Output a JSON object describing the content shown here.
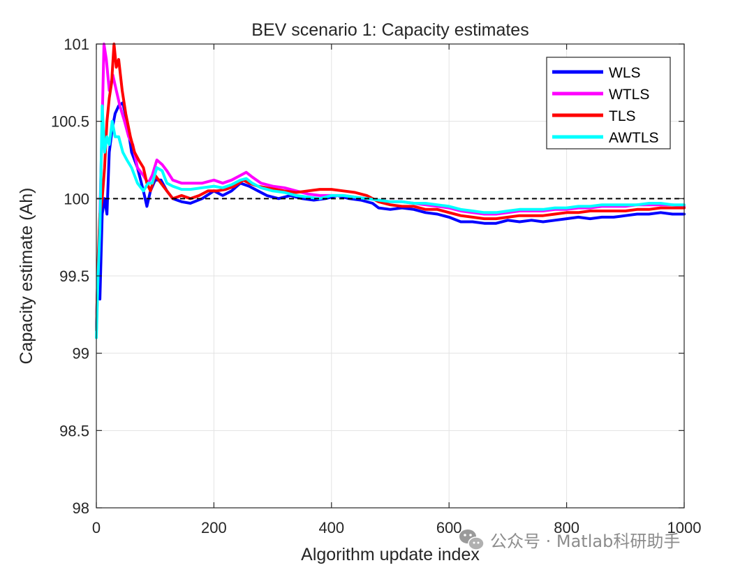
{
  "chart_data": {
    "type": "line",
    "title": "BEV scenario 1: Capacity estimates",
    "xlabel": "Algorithm update index",
    "ylabel": "Capacity estimate (Ah)",
    "xlim": [
      0,
      1000
    ],
    "ylim": [
      98,
      101
    ],
    "xticks": [
      0,
      200,
      400,
      600,
      800,
      1000
    ],
    "yticks": [
      98,
      98.5,
      99,
      99.5,
      100,
      100.5,
      101
    ],
    "grid": true,
    "legend_position": "top-right",
    "reference_line": {
      "y": 100,
      "style": "dashed",
      "color": "#000000"
    },
    "series": [
      {
        "name": "WLS",
        "color": "#0000ff",
        "points": [
          [
            0,
            99.15
          ],
          [
            3,
            99.6
          ],
          [
            6,
            99.35
          ],
          [
            10,
            99.9
          ],
          [
            14,
            100.0
          ],
          [
            18,
            99.9
          ],
          [
            22,
            100.3
          ],
          [
            27,
            100.45
          ],
          [
            32,
            100.55
          ],
          [
            38,
            100.6
          ],
          [
            45,
            100.62
          ],
          [
            52,
            100.5
          ],
          [
            60,
            100.3
          ],
          [
            70,
            100.2
          ],
          [
            80,
            100.05
          ],
          [
            86,
            99.95
          ],
          [
            92,
            100.05
          ],
          [
            100,
            100.12
          ],
          [
            110,
            100.12
          ],
          [
            120,
            100.05
          ],
          [
            130,
            100.0
          ],
          [
            145,
            99.98
          ],
          [
            160,
            99.97
          ],
          [
            180,
            100.0
          ],
          [
            200,
            100.05
          ],
          [
            215,
            100.02
          ],
          [
            230,
            100.05
          ],
          [
            245,
            100.1
          ],
          [
            260,
            100.08
          ],
          [
            275,
            100.05
          ],
          [
            290,
            100.02
          ],
          [
            310,
            100.0
          ],
          [
            330,
            100.02
          ],
          [
            350,
            100.0
          ],
          [
            370,
            99.99
          ],
          [
            390,
            100.0
          ],
          [
            410,
            100.02
          ],
          [
            430,
            100.0
          ],
          [
            450,
            99.99
          ],
          [
            470,
            99.97
          ],
          [
            480,
            99.94
          ],
          [
            500,
            99.93
          ],
          [
            520,
            99.94
          ],
          [
            540,
            99.93
          ],
          [
            560,
            99.91
          ],
          [
            580,
            99.9
          ],
          [
            600,
            99.88
          ],
          [
            620,
            99.85
          ],
          [
            640,
            99.85
          ],
          [
            660,
            99.84
          ],
          [
            680,
            99.84
          ],
          [
            700,
            99.86
          ],
          [
            720,
            99.85
          ],
          [
            740,
            99.86
          ],
          [
            760,
            99.85
          ],
          [
            780,
            99.86
          ],
          [
            800,
            99.87
          ],
          [
            820,
            99.88
          ],
          [
            840,
            99.87
          ],
          [
            860,
            99.88
          ],
          [
            880,
            99.88
          ],
          [
            900,
            99.89
          ],
          [
            920,
            99.9
          ],
          [
            940,
            99.9
          ],
          [
            960,
            99.91
          ],
          [
            980,
            99.9
          ],
          [
            1000,
            99.9
          ]
        ]
      },
      {
        "name": "WTLS",
        "color": "#ff00ff",
        "points": [
          [
            0,
            99.15
          ],
          [
            3,
            99.5
          ],
          [
            6,
            99.9
          ],
          [
            10,
            100.5
          ],
          [
            13,
            101.0
          ],
          [
            17,
            100.9
          ],
          [
            22,
            100.7
          ],
          [
            28,
            100.8
          ],
          [
            34,
            100.7
          ],
          [
            40,
            100.6
          ],
          [
            48,
            100.5
          ],
          [
            55,
            100.4
          ],
          [
            62,
            100.35
          ],
          [
            70,
            100.2
          ],
          [
            80,
            100.15
          ],
          [
            88,
            100.1
          ],
          [
            95,
            100.15
          ],
          [
            103,
            100.25
          ],
          [
            112,
            100.22
          ],
          [
            120,
            100.18
          ],
          [
            130,
            100.12
          ],
          [
            145,
            100.1
          ],
          [
            160,
            100.1
          ],
          [
            180,
            100.1
          ],
          [
            200,
            100.12
          ],
          [
            215,
            100.1
          ],
          [
            230,
            100.12
          ],
          [
            245,
            100.15
          ],
          [
            255,
            100.17
          ],
          [
            265,
            100.14
          ],
          [
            280,
            100.1
          ],
          [
            300,
            100.08
          ],
          [
            320,
            100.07
          ],
          [
            340,
            100.05
          ],
          [
            360,
            100.03
          ],
          [
            380,
            100.02
          ],
          [
            400,
            100.02
          ],
          [
            420,
            100.02
          ],
          [
            440,
            100.01
          ],
          [
            460,
            100.0
          ],
          [
            480,
            99.99
          ],
          [
            500,
            99.98
          ],
          [
            520,
            99.98
          ],
          [
            540,
            99.97
          ],
          [
            560,
            99.96
          ],
          [
            580,
            99.95
          ],
          [
            600,
            99.94
          ],
          [
            620,
            99.92
          ],
          [
            640,
            99.91
          ],
          [
            660,
            99.9
          ],
          [
            680,
            99.9
          ],
          [
            700,
            99.91
          ],
          [
            720,
            99.92
          ],
          [
            740,
            99.92
          ],
          [
            760,
            99.92
          ],
          [
            780,
            99.93
          ],
          [
            800,
            99.93
          ],
          [
            820,
            99.94
          ],
          [
            840,
            99.94
          ],
          [
            860,
            99.95
          ],
          [
            880,
            99.95
          ],
          [
            900,
            99.95
          ],
          [
            920,
            99.96
          ],
          [
            940,
            99.96
          ],
          [
            960,
            99.96
          ],
          [
            980,
            99.96
          ],
          [
            1000,
            99.95
          ]
        ]
      },
      {
        "name": "TLS",
        "color": "#ff0000",
        "points": [
          [
            0,
            99.15
          ],
          [
            3,
            99.6
          ],
          [
            6,
            99.9
          ],
          [
            10,
            100.0
          ],
          [
            14,
            100.2
          ],
          [
            18,
            100.5
          ],
          [
            22,
            100.65
          ],
          [
            26,
            100.75
          ],
          [
            30,
            101.0
          ],
          [
            34,
            100.85
          ],
          [
            38,
            100.9
          ],
          [
            44,
            100.7
          ],
          [
            50,
            100.55
          ],
          [
            58,
            100.4
          ],
          [
            65,
            100.3
          ],
          [
            72,
            100.25
          ],
          [
            80,
            100.2
          ],
          [
            86,
            100.1
          ],
          [
            92,
            100.05
          ],
          [
            100,
            100.15
          ],
          [
            110,
            100.1
          ],
          [
            120,
            100.05
          ],
          [
            130,
            100.0
          ],
          [
            145,
            100.02
          ],
          [
            160,
            100.0
          ],
          [
            175,
            100.02
          ],
          [
            190,
            100.05
          ],
          [
            205,
            100.05
          ],
          [
            220,
            100.06
          ],
          [
            235,
            100.08
          ],
          [
            250,
            100.12
          ],
          [
            260,
            100.1
          ],
          [
            275,
            100.08
          ],
          [
            290,
            100.07
          ],
          [
            305,
            100.06
          ],
          [
            320,
            100.05
          ],
          [
            340,
            100.04
          ],
          [
            360,
            100.05
          ],
          [
            380,
            100.06
          ],
          [
            400,
            100.06
          ],
          [
            420,
            100.05
          ],
          [
            440,
            100.04
          ],
          [
            460,
            100.02
          ],
          [
            480,
            99.98
          ],
          [
            500,
            99.96
          ],
          [
            520,
            99.95
          ],
          [
            540,
            99.95
          ],
          [
            560,
            99.93
          ],
          [
            580,
            99.93
          ],
          [
            600,
            99.91
          ],
          [
            620,
            99.89
          ],
          [
            640,
            99.88
          ],
          [
            660,
            99.87
          ],
          [
            680,
            99.87
          ],
          [
            700,
            99.88
          ],
          [
            720,
            99.89
          ],
          [
            740,
            99.89
          ],
          [
            760,
            99.89
          ],
          [
            780,
            99.9
          ],
          [
            800,
            99.91
          ],
          [
            820,
            99.91
          ],
          [
            840,
            99.92
          ],
          [
            860,
            99.92
          ],
          [
            880,
            99.92
          ],
          [
            900,
            99.92
          ],
          [
            920,
            99.93
          ],
          [
            940,
            99.93
          ],
          [
            960,
            99.94
          ],
          [
            980,
            99.94
          ],
          [
            1000,
            99.94
          ]
        ]
      },
      {
        "name": "AWTLS",
        "color": "#00ffff",
        "points": [
          [
            0,
            99.1
          ],
          [
            3,
            99.5
          ],
          [
            6,
            99.8
          ],
          [
            10,
            100.6
          ],
          [
            14,
            100.3
          ],
          [
            18,
            100.4
          ],
          [
            22,
            100.35
          ],
          [
            27,
            100.5
          ],
          [
            32,
            100.4
          ],
          [
            38,
            100.4
          ],
          [
            45,
            100.3
          ],
          [
            52,
            100.25
          ],
          [
            60,
            100.2
          ],
          [
            70,
            100.1
          ],
          [
            80,
            100.05
          ],
          [
            88,
            100.1
          ],
          [
            95,
            100.1
          ],
          [
            103,
            100.2
          ],
          [
            112,
            100.18
          ],
          [
            120,
            100.1
          ],
          [
            130,
            100.08
          ],
          [
            145,
            100.06
          ],
          [
            160,
            100.06
          ],
          [
            180,
            100.07
          ],
          [
            200,
            100.08
          ],
          [
            215,
            100.07
          ],
          [
            230,
            100.09
          ],
          [
            245,
            100.12
          ],
          [
            255,
            100.13
          ],
          [
            265,
            100.1
          ],
          [
            280,
            100.07
          ],
          [
            300,
            100.05
          ],
          [
            320,
            100.04
          ],
          [
            340,
            100.02
          ],
          [
            360,
            100.01
          ],
          [
            380,
            100.0
          ],
          [
            400,
            100.02
          ],
          [
            420,
            100.02
          ],
          [
            440,
            100.01
          ],
          [
            460,
            100.0
          ],
          [
            480,
            99.99
          ],
          [
            500,
            99.98
          ],
          [
            520,
            99.98
          ],
          [
            540,
            99.97
          ],
          [
            560,
            99.97
          ],
          [
            580,
            99.96
          ],
          [
            600,
            99.95
          ],
          [
            620,
            99.93
          ],
          [
            640,
            99.92
          ],
          [
            660,
            99.91
          ],
          [
            680,
            99.91
          ],
          [
            700,
            99.92
          ],
          [
            720,
            99.93
          ],
          [
            740,
            99.93
          ],
          [
            760,
            99.93
          ],
          [
            780,
            99.94
          ],
          [
            800,
            99.94
          ],
          [
            820,
            99.95
          ],
          [
            840,
            99.95
          ],
          [
            860,
            99.96
          ],
          [
            880,
            99.96
          ],
          [
            900,
            99.96
          ],
          [
            920,
            99.96
          ],
          [
            940,
            99.97
          ],
          [
            960,
            99.97
          ],
          [
            980,
            99.96
          ],
          [
            1000,
            99.96
          ]
        ]
      }
    ]
  },
  "watermark": {
    "text": "公众号 · Matlab科研助手",
    "icon": "wechat-icon"
  }
}
